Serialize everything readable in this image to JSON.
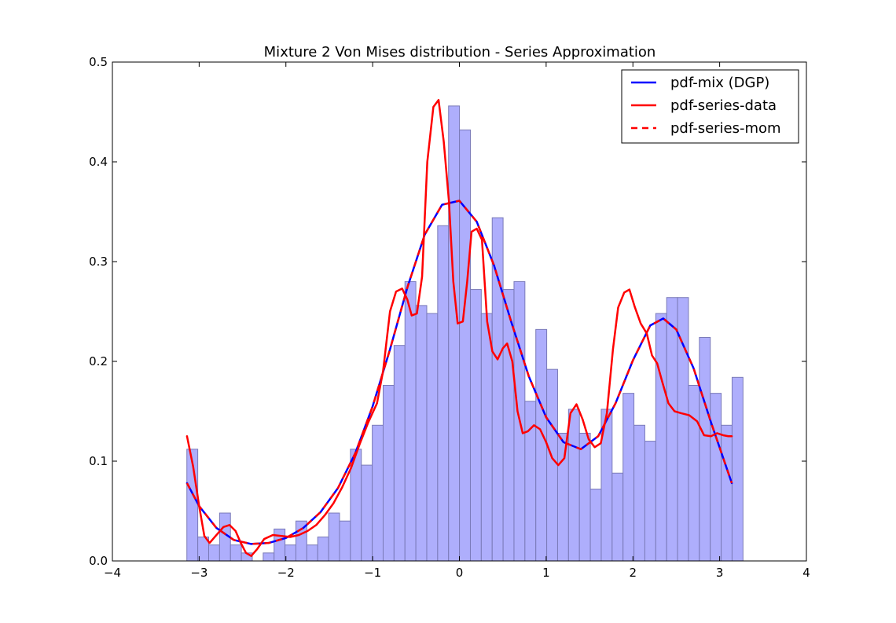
{
  "chart_data": {
    "type": "bar+line",
    "title": "Mixture 2 Von Mises distribution - Series Approximation",
    "xlabel": "",
    "ylabel": "",
    "xlim": [
      -4,
      4
    ],
    "ylim": [
      0,
      0.5
    ],
    "x_ticks": [
      -4,
      -3,
      -2,
      -1,
      0,
      1,
      2,
      3,
      4
    ],
    "x_tick_labels": [
      "−4",
      "−3",
      "−2",
      "−1",
      "0",
      "1",
      "2",
      "3",
      "4"
    ],
    "y_ticks": [
      0.0,
      0.1,
      0.2,
      0.3,
      0.4,
      0.5
    ],
    "y_tick_labels": [
      "0.0",
      "0.1",
      "0.2",
      "0.3",
      "0.4",
      "0.5"
    ],
    "grid": false,
    "legend_position": "top-right",
    "histogram": {
      "bin_start": -3.1416,
      "bin_width": 0.1257,
      "fill_color": "#aeaefc",
      "edge_color": "#7a7ab8",
      "heights": [
        0.112,
        0.024,
        0.016,
        0.048,
        0.016,
        0.008,
        0.0,
        0.008,
        0.032,
        0.016,
        0.04,
        0.016,
        0.024,
        0.048,
        0.04,
        0.112,
        0.096,
        0.136,
        0.176,
        0.216,
        0.28,
        0.256,
        0.248,
        0.336,
        0.456,
        0.432,
        0.272,
        0.248,
        0.344,
        0.272,
        0.28,
        0.16,
        0.232,
        0.192,
        0.128,
        0.152,
        0.128,
        0.072,
        0.152,
        0.088,
        0.168,
        0.136,
        0.12,
        0.248,
        0.264,
        0.264,
        0.176,
        0.224,
        0.168,
        0.136,
        0.184
      ]
    },
    "series": [
      {
        "name": "pdf-mix (DGP)",
        "color": "#0000ff",
        "style": "solid",
        "x": [
          -3.14,
          -3.0,
          -2.8,
          -2.6,
          -2.4,
          -2.2,
          -2.0,
          -1.8,
          -1.6,
          -1.4,
          -1.2,
          -1.0,
          -0.8,
          -0.6,
          -0.4,
          -0.2,
          0.0,
          0.2,
          0.4,
          0.6,
          0.8,
          1.0,
          1.2,
          1.4,
          1.6,
          1.8,
          2.0,
          2.2,
          2.35,
          2.5,
          2.7,
          2.9,
          3.14
        ],
        "y": [
          0.078,
          0.055,
          0.033,
          0.021,
          0.017,
          0.018,
          0.023,
          0.033,
          0.049,
          0.073,
          0.108,
          0.155,
          0.212,
          0.274,
          0.327,
          0.357,
          0.361,
          0.34,
          0.296,
          0.239,
          0.185,
          0.144,
          0.119,
          0.112,
          0.125,
          0.158,
          0.201,
          0.236,
          0.243,
          0.232,
          0.193,
          0.139,
          0.078
        ]
      },
      {
        "name": "pdf-series-data",
        "color": "#ff0000",
        "style": "solid",
        "x": [
          -3.14,
          -3.07,
          -3.0,
          -2.94,
          -2.88,
          -2.8,
          -2.72,
          -2.65,
          -2.58,
          -2.52,
          -2.46,
          -2.4,
          -2.33,
          -2.25,
          -2.15,
          -2.05,
          -1.95,
          -1.85,
          -1.75,
          -1.65,
          -1.55,
          -1.45,
          -1.35,
          -1.25,
          -1.15,
          -1.05,
          -0.95,
          -0.88,
          -0.8,
          -0.73,
          -0.66,
          -0.6,
          -0.55,
          -0.49,
          -0.43,
          -0.37,
          -0.3,
          -0.24,
          -0.18,
          -0.12,
          -0.07,
          -0.02,
          0.04,
          0.09,
          0.14,
          0.2,
          0.26,
          0.32,
          0.38,
          0.44,
          0.5,
          0.55,
          0.61,
          0.67,
          0.73,
          0.79,
          0.86,
          0.93,
          1.0,
          1.07,
          1.14,
          1.21,
          1.28,
          1.35,
          1.42,
          1.49,
          1.56,
          1.63,
          1.7,
          1.77,
          1.83,
          1.9,
          1.96,
          2.02,
          2.09,
          2.16,
          2.22,
          2.28,
          2.34,
          2.41,
          2.48,
          2.56,
          2.65,
          2.74,
          2.82,
          2.9,
          2.97,
          3.04,
          3.1,
          3.14
        ],
        "y": [
          0.125,
          0.095,
          0.055,
          0.025,
          0.018,
          0.026,
          0.034,
          0.036,
          0.03,
          0.018,
          0.008,
          0.005,
          0.012,
          0.022,
          0.026,
          0.025,
          0.024,
          0.026,
          0.03,
          0.036,
          0.046,
          0.058,
          0.074,
          0.093,
          0.117,
          0.139,
          0.158,
          0.19,
          0.25,
          0.27,
          0.273,
          0.262,
          0.246,
          0.248,
          0.285,
          0.4,
          0.455,
          0.462,
          0.42,
          0.36,
          0.28,
          0.238,
          0.24,
          0.28,
          0.33,
          0.333,
          0.322,
          0.24,
          0.21,
          0.202,
          0.213,
          0.218,
          0.2,
          0.15,
          0.128,
          0.13,
          0.136,
          0.132,
          0.119,
          0.103,
          0.096,
          0.103,
          0.148,
          0.157,
          0.142,
          0.122,
          0.114,
          0.118,
          0.148,
          0.212,
          0.254,
          0.269,
          0.272,
          0.255,
          0.238,
          0.228,
          0.206,
          0.198,
          0.179,
          0.158,
          0.15,
          0.148,
          0.146,
          0.14,
          0.126,
          0.125,
          0.128,
          0.126,
          0.125,
          0.125
        ],
        "y_note": ""
      },
      {
        "name": "pdf-series-mom",
        "color": "#ff0000",
        "style": "dashed",
        "x": [
          -3.14,
          -3.0,
          -2.8,
          -2.6,
          -2.4,
          -2.2,
          -2.0,
          -1.8,
          -1.6,
          -1.4,
          -1.2,
          -1.0,
          -0.8,
          -0.6,
          -0.4,
          -0.2,
          0.0,
          0.2,
          0.4,
          0.6,
          0.8,
          1.0,
          1.2,
          1.4,
          1.6,
          1.8,
          2.0,
          2.2,
          2.35,
          2.5,
          2.7,
          2.9,
          3.14
        ],
        "y": [
          0.078,
          0.055,
          0.033,
          0.021,
          0.017,
          0.018,
          0.023,
          0.033,
          0.049,
          0.073,
          0.108,
          0.155,
          0.212,
          0.274,
          0.327,
          0.357,
          0.361,
          0.34,
          0.296,
          0.239,
          0.185,
          0.144,
          0.119,
          0.112,
          0.125,
          0.158,
          0.201,
          0.236,
          0.243,
          0.232,
          0.193,
          0.139,
          0.078
        ]
      }
    ]
  }
}
